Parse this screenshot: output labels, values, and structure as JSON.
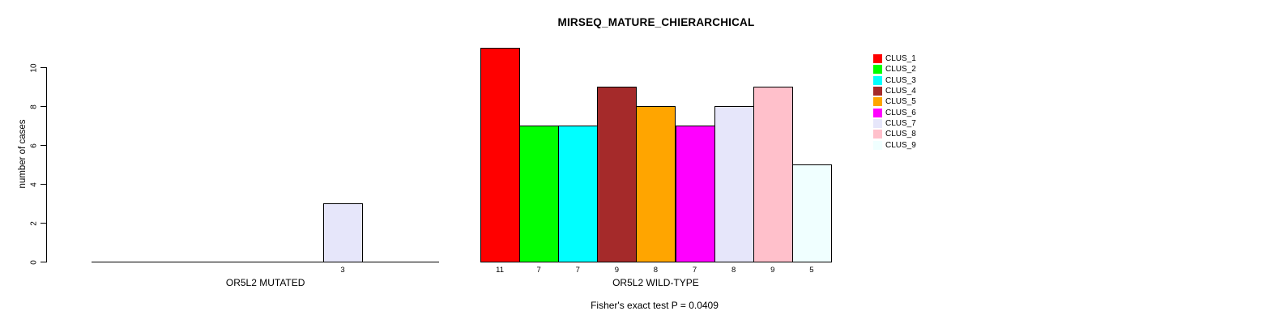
{
  "chart_data": {
    "type": "bar",
    "title": "MIRSEQ_MATURE_CHIERARCHICAL",
    "ylabel": "number of cases",
    "ylim": [
      0,
      10
    ],
    "yticks": [
      0,
      2,
      4,
      6,
      8,
      10
    ],
    "grid": false,
    "legend_position": "right",
    "clusters": [
      "CLUS_1",
      "CLUS_2",
      "CLUS_3",
      "CLUS_4",
      "CLUS_5",
      "CLUS_6",
      "CLUS_7",
      "CLUS_8",
      "CLUS_9"
    ],
    "colors": [
      "#FF0000",
      "#00FF00",
      "#00FFFF",
      "#A52A2A",
      "#FFA500",
      "#FF00FF",
      "#E6E6FA",
      "#FFC0CB",
      "#F0FFFF"
    ],
    "groups": [
      {
        "label": "OR5L2 MUTATED",
        "values": [
          0,
          0,
          0,
          0,
          0,
          0,
          3,
          0,
          0
        ]
      },
      {
        "label": "OR5L2 WILD-TYPE",
        "values": [
          11,
          7,
          7,
          9,
          8,
          7,
          8,
          9,
          5
        ]
      }
    ],
    "annotation": "Fisher's exact test P = 0.0409"
  }
}
